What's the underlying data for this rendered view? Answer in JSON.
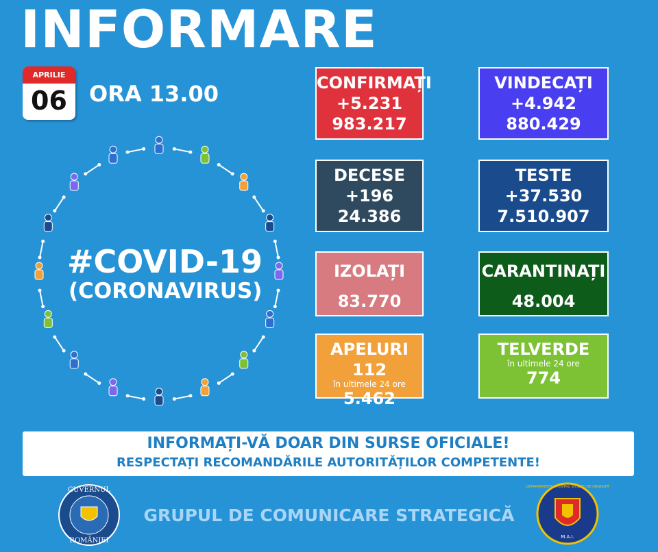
{
  "header": {
    "title": "INFORMARE",
    "month": "APRILIE",
    "day": "06",
    "time": "ORA 13.00"
  },
  "covid": {
    "title": "#COVID-19",
    "subtitle": "(CORONAVIRUS)"
  },
  "boxes": [
    {
      "label": "CONFIRMAȚI",
      "delta": "+5.231",
      "total": "983.217"
    },
    {
      "label": "VINDECAȚI",
      "delta": "+4.942",
      "total": "880.429"
    },
    {
      "label": "DECESE",
      "delta": "+196",
      "total": "24.386"
    },
    {
      "label": "TESTE",
      "delta": "+37.530",
      "total": "7.510.907"
    },
    {
      "label": "IZOLAȚI",
      "total": "83.770"
    },
    {
      "label": "CARANTINAȚI",
      "total": "48.004"
    },
    {
      "label": "APELURI 112",
      "note": "în ultimele 24 ore",
      "total": "5.462"
    },
    {
      "label": "TELVERDE",
      "note": "în ultimele 24 ore",
      "total": "774"
    }
  ],
  "banner": {
    "line1": "INFORMAȚI-VĂ DOAR DIN SURSE OFICIALE!",
    "line2": "RESPECTAȚI RECOMANDĂRILE AUTORITĂȚILOR COMPETENTE!"
  },
  "footer": {
    "text": "GRUPUL DE COMUNICARE STRATEGICĂ",
    "logo_left_top": "GUVERNUL",
    "logo_left_bottom": "ROMÂNIEI",
    "logo_right_ring": "DEPARTAMENTUL PENTRU SITUAȚII DE URGENȚĂ",
    "logo_right_bottom": "M.A.I."
  }
}
